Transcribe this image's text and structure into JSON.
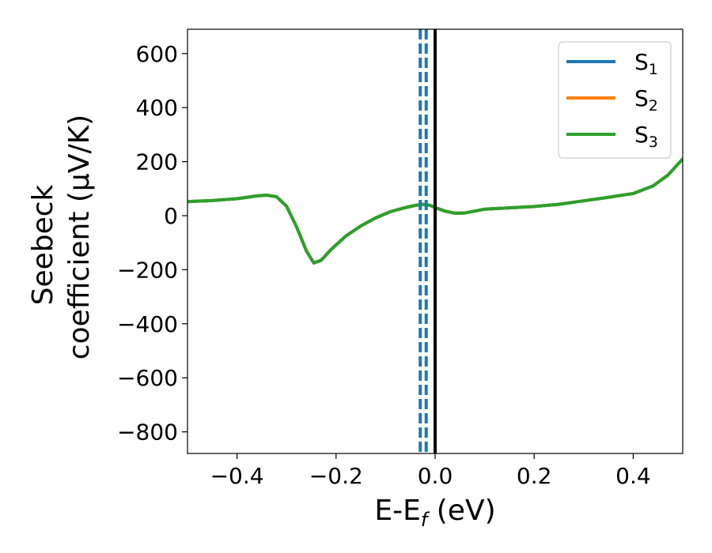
{
  "chart_data": {
    "type": "line",
    "xlabel": "E-E",
    "xlabel_sub": "f",
    "xlabel_suffix": " (eV)",
    "ylabel_line1": "Seebeck",
    "ylabel_line2": "coefficient  (μV/K)",
    "xlim": [
      -0.5,
      0.5
    ],
    "ylim": [
      -880,
      690
    ],
    "x_ticks": [
      -0.4,
      -0.2,
      0.0,
      0.2,
      0.4
    ],
    "x_tick_labels": [
      "−0.4",
      "−0.2",
      "0.0",
      "0.2",
      "0.4"
    ],
    "y_ticks": [
      600,
      400,
      200,
      0,
      -200,
      -400,
      -600,
      -800
    ],
    "y_tick_labels": [
      "600",
      "400",
      "200",
      "0",
      "−200",
      "−400",
      "−600",
      "−800"
    ],
    "legend_position": "top-right",
    "series": [
      {
        "name": "S",
        "name_sub": "1",
        "color": "#1f77b4",
        "x": [
          -0.5,
          -0.45,
          -0.4,
          -0.36,
          -0.34,
          -0.32,
          -0.3,
          -0.28,
          -0.26,
          -0.245,
          -0.23,
          -0.21,
          -0.18,
          -0.15,
          -0.12,
          -0.09,
          -0.06,
          -0.04,
          -0.025,
          -0.01,
          0.0,
          0.02,
          0.04,
          0.06,
          0.08,
          0.1,
          0.15,
          0.2,
          0.25,
          0.3,
          0.35,
          0.4,
          0.44,
          0.47,
          0.5
        ],
        "y": [
          52,
          56,
          63,
          73,
          76,
          70,
          35,
          -40,
          -130,
          -175,
          -165,
          -125,
          -75,
          -38,
          -8,
          15,
          30,
          38,
          42,
          38,
          30,
          17,
          9,
          10,
          17,
          24,
          29,
          34,
          42,
          55,
          68,
          82,
          110,
          150,
          210
        ]
      },
      {
        "name": "S",
        "name_sub": "2",
        "color": "#ff7f0e",
        "x": [
          -0.5,
          -0.45,
          -0.4,
          -0.36,
          -0.34,
          -0.32,
          -0.3,
          -0.28,
          -0.26,
          -0.245,
          -0.23,
          -0.21,
          -0.18,
          -0.15,
          -0.12,
          -0.09,
          -0.06,
          -0.04,
          -0.025,
          -0.01,
          0.0,
          0.02,
          0.04,
          0.06,
          0.08,
          0.1,
          0.15,
          0.2,
          0.25,
          0.3,
          0.35,
          0.4,
          0.44,
          0.47,
          0.5
        ],
        "y": [
          52,
          56,
          63,
          73,
          76,
          70,
          35,
          -40,
          -130,
          -175,
          -165,
          -125,
          -75,
          -38,
          -8,
          15,
          30,
          38,
          42,
          38,
          30,
          17,
          9,
          10,
          17,
          24,
          29,
          34,
          42,
          55,
          68,
          82,
          110,
          150,
          210
        ]
      },
      {
        "name": "S",
        "name_sub": "3",
        "color": "#2ca02c",
        "x": [
          -0.5,
          -0.45,
          -0.4,
          -0.36,
          -0.34,
          -0.32,
          -0.3,
          -0.28,
          -0.26,
          -0.245,
          -0.23,
          -0.21,
          -0.18,
          -0.15,
          -0.12,
          -0.09,
          -0.06,
          -0.04,
          -0.025,
          -0.01,
          0.0,
          0.02,
          0.04,
          0.06,
          0.08,
          0.1,
          0.15,
          0.2,
          0.25,
          0.3,
          0.35,
          0.4,
          0.44,
          0.47,
          0.5
        ],
        "y": [
          52,
          56,
          63,
          73,
          76,
          70,
          35,
          -40,
          -130,
          -175,
          -165,
          -125,
          -75,
          -38,
          -8,
          15,
          30,
          38,
          42,
          38,
          30,
          17,
          9,
          10,
          17,
          24,
          29,
          34,
          42,
          55,
          68,
          82,
          110,
          150,
          210
        ]
      }
    ],
    "vertical_lines": [
      {
        "x": -0.03,
        "style": "dashed",
        "color": "#1f77b4"
      },
      {
        "x": -0.018,
        "style": "dashed",
        "color": "#1f77b4"
      },
      {
        "x": 0.0,
        "style": "solid",
        "color": "#000000"
      }
    ]
  }
}
